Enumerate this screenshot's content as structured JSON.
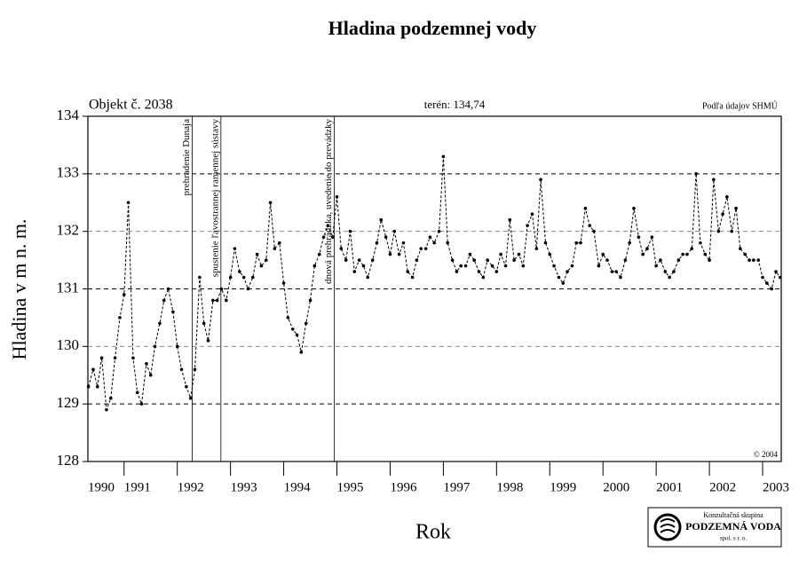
{
  "chart_data": {
    "type": "line",
    "title": "Hladina podzemnej vody",
    "xlabel": "Rok",
    "ylabel": "Hladina v m n. m.",
    "object_label": "Objekt č. 2038",
    "terrain_label": "terén: 134,74",
    "source_label": "Podľa údajov SHMÚ",
    "copyright": "© 2004",
    "logo": [
      "Konzultačná skupina",
      "PODZEMNÁ VODA",
      "spol. s r. o."
    ],
    "color": "#000000",
    "grid": true,
    "xlim": [
      1990.32,
      2003.35
    ],
    "ylim": [
      128,
      134
    ],
    "xticks": [
      1990,
      1991,
      1992,
      1993,
      1994,
      1995,
      1996,
      1997,
      1998,
      1999,
      2000,
      2001,
      2002,
      2003
    ],
    "yticks": [
      128,
      129,
      130,
      131,
      132,
      133,
      134
    ],
    "events": [
      {
        "x": 1992.28,
        "label": "prehradenie Dunaja"
      },
      {
        "x": 1992.82,
        "label": "spustenie ľavostrannej ramennej sústavy"
      },
      {
        "x": 1994.95,
        "label": "dnová prehrádzka, uvedenie do prevádzky"
      }
    ],
    "x": [
      1990.33,
      1990.42,
      1990.5,
      1990.58,
      1990.67,
      1990.75,
      1990.83,
      1990.92,
      1991.0,
      1991.08,
      1991.17,
      1991.25,
      1991.33,
      1991.42,
      1991.5,
      1991.58,
      1991.67,
      1991.75,
      1991.83,
      1991.92,
      1992.0,
      1992.08,
      1992.17,
      1992.25,
      1992.33,
      1992.42,
      1992.5,
      1992.58,
      1992.67,
      1992.75,
      1992.83,
      1992.92,
      1993.0,
      1993.08,
      1993.17,
      1993.25,
      1993.33,
      1993.42,
      1993.5,
      1993.58,
      1993.67,
      1993.75,
      1993.83,
      1993.92,
      1994.0,
      1994.08,
      1994.17,
      1994.25,
      1994.33,
      1994.42,
      1994.5,
      1994.58,
      1994.67,
      1994.75,
      1994.83,
      1994.92,
      1995.0,
      1995.08,
      1995.17,
      1995.25,
      1995.33,
      1995.42,
      1995.5,
      1995.58,
      1995.67,
      1995.75,
      1995.83,
      1995.92,
      1996.0,
      1996.08,
      1996.17,
      1996.25,
      1996.33,
      1996.42,
      1996.5,
      1996.58,
      1996.67,
      1996.75,
      1996.83,
      1996.92,
      1997.0,
      1997.08,
      1997.17,
      1997.25,
      1997.33,
      1997.42,
      1997.5,
      1997.58,
      1997.67,
      1997.75,
      1997.83,
      1997.92,
      1998.0,
      1998.08,
      1998.17,
      1998.25,
      1998.33,
      1998.42,
      1998.5,
      1998.58,
      1998.67,
      1998.75,
      1998.83,
      1998.92,
      1999.0,
      1999.08,
      1999.17,
      1999.25,
      1999.33,
      1999.42,
      1999.5,
      1999.58,
      1999.67,
      1999.75,
      1999.83,
      1999.92,
      2000.0,
      2000.08,
      2000.17,
      2000.25,
      2000.33,
      2000.42,
      2000.5,
      2000.58,
      2000.67,
      2000.75,
      2000.83,
      2000.92,
      2001.0,
      2001.08,
      2001.17,
      2001.25,
      2001.33,
      2001.42,
      2001.5,
      2001.58,
      2001.67,
      2001.75,
      2001.83,
      2001.92,
      2002.0,
      2002.08,
      2002.17,
      2002.25,
      2002.33,
      2002.42,
      2002.5,
      2002.58,
      2002.67,
      2002.75,
      2002.83,
      2002.92,
      2003.0,
      2003.08,
      2003.17,
      2003.25,
      2003.33
    ],
    "values": [
      129.3,
      129.6,
      129.3,
      129.8,
      128.9,
      129.1,
      129.8,
      130.5,
      130.9,
      132.5,
      129.8,
      129.2,
      129.0,
      129.7,
      129.5,
      130.0,
      130.4,
      130.8,
      131.0,
      130.6,
      130.0,
      129.6,
      129.3,
      129.1,
      129.6,
      131.2,
      130.4,
      130.1,
      130.8,
      130.8,
      131.0,
      130.8,
      131.2,
      131.7,
      131.3,
      131.2,
      131.0,
      131.2,
      131.6,
      131.4,
      131.5,
      132.5,
      131.7,
      131.8,
      131.1,
      130.5,
      130.3,
      130.2,
      129.9,
      130.4,
      130.8,
      131.4,
      131.6,
      131.9,
      132.1,
      131.9,
      132.6,
      131.7,
      131.5,
      132.0,
      131.3,
      131.5,
      131.4,
      131.2,
      131.5,
      131.8,
      132.2,
      131.9,
      131.6,
      132.0,
      131.6,
      131.8,
      131.3,
      131.2,
      131.5,
      131.7,
      131.7,
      131.9,
      131.8,
      132.0,
      133.3,
      131.8,
      131.5,
      131.3,
      131.4,
      131.4,
      131.6,
      131.5,
      131.3,
      131.2,
      131.5,
      131.4,
      131.3,
      131.6,
      131.4,
      132.2,
      131.5,
      131.6,
      131.4,
      132.1,
      132.3,
      131.7,
      132.9,
      131.8,
      131.6,
      131.4,
      131.2,
      131.1,
      131.3,
      131.4,
      131.8,
      131.8,
      132.4,
      132.1,
      132.0,
      131.4,
      131.6,
      131.5,
      131.3,
      131.3,
      131.2,
      131.5,
      131.8,
      132.4,
      131.9,
      131.6,
      131.7,
      131.9,
      131.4,
      131.5,
      131.3,
      131.2,
      131.3,
      131.5,
      131.6,
      131.6,
      131.7,
      133.0,
      131.8,
      131.6,
      131.5,
      132.9,
      132.0,
      132.3,
      132.6,
      132.0,
      132.4,
      131.7,
      131.6,
      131.5,
      131.5,
      131.5,
      131.2,
      131.1,
      131.0,
      131.3,
      131.2
    ]
  }
}
